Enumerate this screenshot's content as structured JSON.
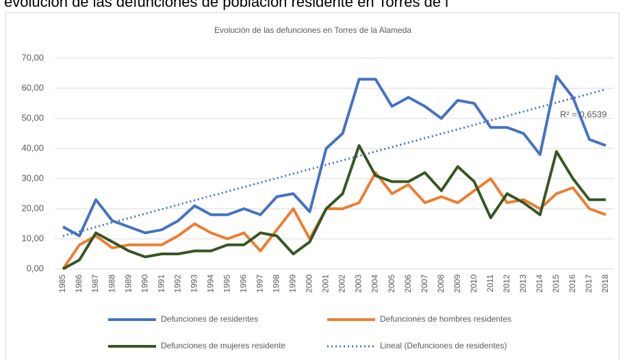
{
  "header": "evolución de las defunciones de población residente en Torres de l",
  "chart_data": {
    "type": "line",
    "title": "Evolución de las defunciones en Torres de la Alameda",
    "categories": [
      "1985",
      "1986",
      "1987",
      "1988",
      "1989",
      "1990",
      "1991",
      "1992",
      "1993",
      "1994",
      "1995",
      "1996",
      "1997",
      "1998",
      "1999",
      "2000",
      "2001",
      "2002",
      "2003",
      "2004",
      "2005",
      "2006",
      "2007",
      "2008",
      "2009",
      "2010",
      "2011",
      "2012",
      "2013",
      "2014",
      "2015",
      "2016",
      "2017",
      "2018"
    ],
    "series": [
      {
        "name": "Defunciones de residentes",
        "color": "#4472c4",
        "values": [
          14,
          11,
          23,
          16,
          14,
          12,
          13,
          16,
          21,
          18,
          18,
          20,
          18,
          24,
          25,
          19,
          40,
          45,
          63,
          63,
          54,
          57,
          54,
          50,
          56,
          55,
          47,
          47,
          45,
          38,
          64,
          57,
          43,
          41
        ]
      },
      {
        "name": "Defunciones de hombres residentes",
        "color": "#ed7d31",
        "values": [
          0,
          8,
          11,
          7,
          8,
          8,
          8,
          11,
          15,
          12,
          10,
          12,
          6,
          13,
          20,
          10,
          20,
          20,
          22,
          32,
          25,
          28,
          22,
          24,
          22,
          26,
          30,
          22,
          23,
          20,
          25,
          27,
          20,
          18
        ]
      },
      {
        "name": "Defunciones de mujeres residente",
        "color": "#375623",
        "values": [
          0,
          3,
          12,
          9,
          6,
          4,
          5,
          5,
          6,
          6,
          8,
          8,
          12,
          11,
          5,
          9,
          20,
          25,
          41,
          31,
          29,
          29,
          32,
          26,
          34,
          29,
          17,
          25,
          22,
          18,
          39,
          30,
          23,
          23
        ]
      }
    ],
    "trendline": {
      "name": "Lineal (Defunciones de residentes)",
      "series": 0,
      "color": "#4472c4",
      "r2_label": "R² = 0,6539"
    },
    "ylim": [
      0,
      70
    ],
    "yticks": [
      {
        "value": 0,
        "label": "0,00"
      },
      {
        "value": 10,
        "label": "10,00"
      },
      {
        "value": 20,
        "label": "20,00"
      },
      {
        "value": 30,
        "label": "30,00"
      },
      {
        "value": 40,
        "label": "40,00"
      },
      {
        "value": 50,
        "label": "50,00"
      },
      {
        "value": 60,
        "label": "60,00"
      },
      {
        "value": 70,
        "label": "70,00"
      }
    ],
    "grid": true
  }
}
